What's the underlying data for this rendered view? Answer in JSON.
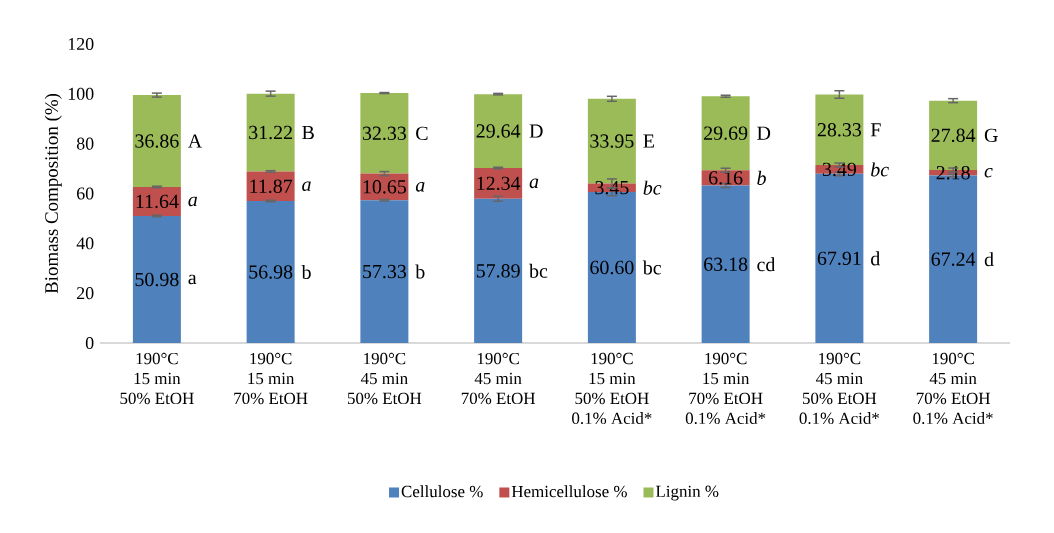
{
  "chart_data": {
    "type": "bar",
    "stacked": true,
    "ylabel": "Biomass Composition (%)",
    "categories": [
      "190°C\n15 min\n50% EtOH",
      "190°C\n15 min\n70% EtOH",
      "190°C\n45 min\n50% EtOH",
      "190°C\n45 min\n70% EtOH",
      "190°C\n15 min\n50% EtOH\n0.1% Acid*",
      "190°C\n15 min\n70% EtOH\n0.1% Acid*",
      "190°C\n45 min\n50% EtOH\n0.1% Acid*",
      "190°C\n45 min\n70% EtOH\n0.1% Acid*"
    ],
    "series": [
      {
        "name": "Cellulose %",
        "color": "#4f81bd",
        "values": [
          50.98,
          56.98,
          57.33,
          57.89,
          60.6,
          63.18,
          67.91,
          67.24
        ],
        "errors": [
          0.3,
          0.3,
          0.3,
          1.0,
          1.5,
          0.8,
          0.8,
          0.5
        ],
        "value_labels": [
          "50.98",
          "56.98",
          "57.33",
          "57.89",
          "60.60",
          "63.18",
          "67.91",
          "67.24"
        ]
      },
      {
        "name": "Hemicellulose %",
        "color": "#c0504d",
        "values": [
          11.64,
          11.87,
          10.65,
          12.34,
          3.45,
          6.16,
          3.49,
          2.18
        ],
        "errors": [
          0.3,
          0.3,
          0.8,
          0.3,
          1.8,
          0.8,
          0.8,
          0.8
        ],
        "value_labels": [
          "11.64",
          "11.87",
          "10.65",
          "12.34",
          "3.45",
          "6.16",
          "3.49",
          "2.18"
        ]
      },
      {
        "name": "Lignin %",
        "color": "#9bbb59",
        "values": [
          36.86,
          31.22,
          32.33,
          29.64,
          33.95,
          29.69,
          28.33,
          27.84
        ],
        "errors": [
          0.8,
          1.0,
          0.2,
          0.3,
          1.0,
          0.4,
          1.5,
          0.8
        ],
        "value_labels": [
          "36.86",
          "31.22",
          "32.33",
          "29.64",
          "33.95",
          "29.69",
          "28.33",
          "27.84"
        ]
      }
    ],
    "ylim": [
      0,
      120
    ],
    "yticks": [
      0,
      20,
      40,
      60,
      80,
      100,
      120
    ],
    "legend": "bottom",
    "annotations": [
      "a",
      "b",
      "b",
      "bc",
      "bc",
      "cd",
      "d",
      "d",
      "*a*",
      "*a*",
      "*a*",
      "*a*",
      "*bc*",
      "*b*",
      "*bc*",
      "*c*",
      "A",
      "B",
      "C",
      "D",
      "E",
      "D",
      "F",
      "G"
    ]
  }
}
